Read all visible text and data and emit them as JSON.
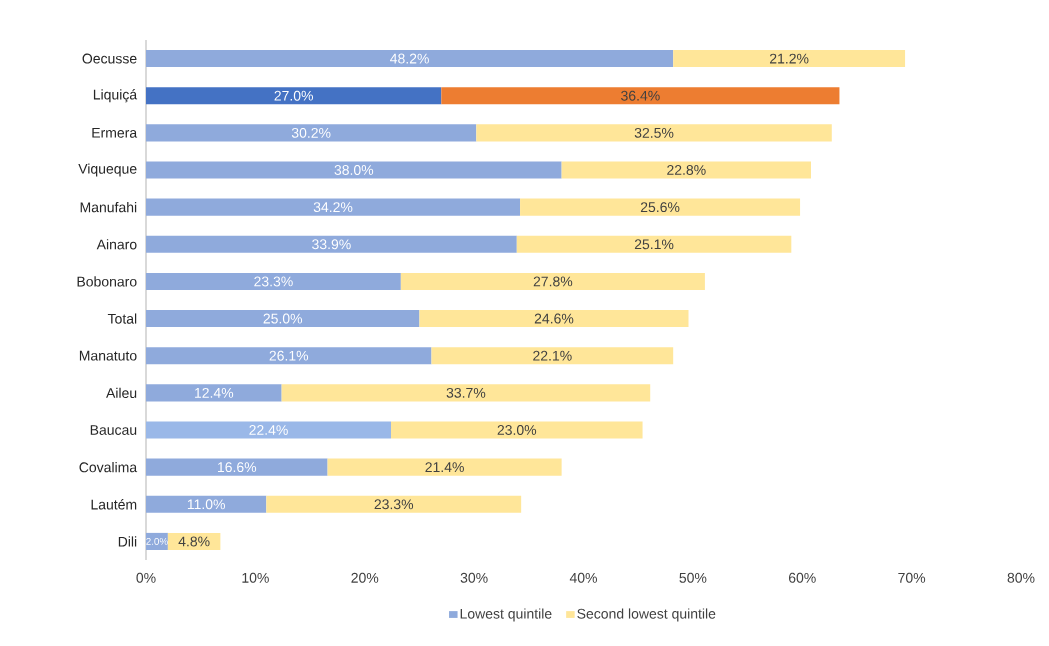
{
  "chart_data": {
    "type": "bar",
    "orientation": "horizontal",
    "stacked": true,
    "categories": [
      "Oecusse",
      "Liquiçá",
      "Ermera",
      "Viqueque",
      "Manufahi",
      "Ainaro",
      "Bobonaro",
      "Total",
      "Manatuto",
      "Aileu",
      "Baucau",
      "Covalima",
      "Lautém",
      "Dili"
    ],
    "series": [
      {
        "name": "Lowest quintile",
        "color": "#8faadc",
        "colors": [
          "#8faadc",
          "#4472c4",
          "#8faadc",
          "#8faadc",
          "#8faadc",
          "#8faadc",
          "#8faadc",
          "#8faadc",
          "#8faadc",
          "#8faadc",
          "#9ab8e8",
          "#8faadc",
          "#8faadc",
          "#8faadc"
        ],
        "values": [
          48.2,
          27.0,
          30.2,
          38.0,
          34.2,
          33.9,
          23.3,
          25.0,
          26.1,
          12.4,
          22.4,
          16.6,
          11.0,
          2.0
        ],
        "value_labels": [
          "48.2%",
          "27.0%",
          "30.2%",
          "38.0%",
          "34.2%",
          "33.9%",
          "23.3%",
          "25.0%",
          "26.1%",
          "12.4%",
          "22.4%",
          "16.6%",
          "11.0%",
          "2.0%"
        ]
      },
      {
        "name": "Second lowest  quintile",
        "color": "#ffe699",
        "colors": [
          "#ffe699",
          "#ed7d31",
          "#ffe699",
          "#ffe699",
          "#ffe699",
          "#ffe699",
          "#ffe699",
          "#ffe699",
          "#ffe699",
          "#ffe699",
          "#ffe699",
          "#ffe699",
          "#ffe699",
          "#ffe699"
        ],
        "values": [
          21.2,
          36.4,
          32.5,
          22.8,
          25.6,
          25.1,
          27.8,
          24.6,
          22.1,
          33.7,
          23.0,
          21.4,
          23.3,
          4.8
        ],
        "value_labels": [
          "21.2%",
          "36.4%",
          "32.5%",
          "22.8%",
          "25.6%",
          "25.1%",
          "27.8%",
          "24.6%",
          "22.1%",
          "33.7%",
          "23.0%",
          "21.4%",
          "23.3%",
          "4.8%"
        ]
      }
    ],
    "xlim": [
      0,
      80
    ],
    "xticks": [
      {
        "value": 0,
        "label": "0%"
      },
      {
        "value": 10,
        "label": "10%"
      },
      {
        "value": 20,
        "label": "20%"
      },
      {
        "value": 30,
        "label": "30%"
      },
      {
        "value": 40,
        "label": "40%"
      },
      {
        "value": 50,
        "label": "50%"
      },
      {
        "value": 60,
        "label": "60%"
      },
      {
        "value": 70,
        "label": "70%"
      },
      {
        "value": 80,
        "label": "80%"
      }
    ],
    "grid": false,
    "legend": "bottom"
  }
}
